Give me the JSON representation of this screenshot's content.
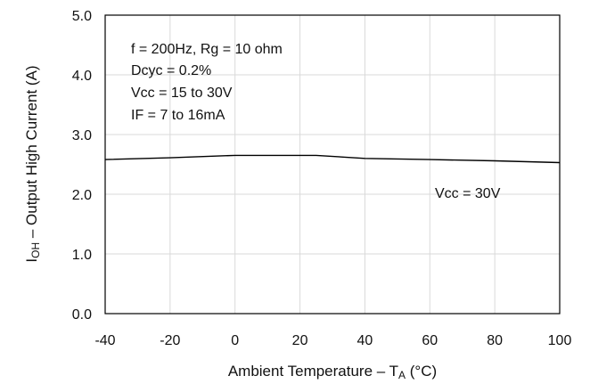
{
  "chart_data": {
    "type": "line",
    "title": "",
    "xlabel": {
      "prefix": "Ambient Temperature – T",
      "subscript": "A",
      "suffix": " (°C)"
    },
    "ylabel": {
      "prefix": "I",
      "subscript": "OH",
      "suffix": " – Output High Current (A)"
    },
    "xlim": [
      -40,
      100
    ],
    "ylim": [
      0,
      5
    ],
    "x_ticks": [
      -40,
      -20,
      0,
      20,
      40,
      60,
      80,
      100
    ],
    "x_tick_labels": [
      "-40",
      "-20",
      "0",
      "20",
      "40",
      "60",
      "80",
      "100"
    ],
    "y_ticks": [
      0,
      1,
      2,
      3,
      4,
      5
    ],
    "y_tick_labels": [
      "0.0",
      "1.0",
      "2.0",
      "3.0",
      "4.0",
      "5.0"
    ],
    "grid": true,
    "series": [
      {
        "name": "Vcc = 30V",
        "color": "#000000",
        "x": [
          -40,
          -20,
          0,
          25,
          40,
          60,
          80,
          100
        ],
        "y": [
          2.58,
          2.61,
          2.65,
          2.65,
          2.6,
          2.58,
          2.56,
          2.53
        ]
      }
    ],
    "annotations": [
      "f = 200Hz, Rg = 10 ohm",
      "Dcyc = 0.2%",
      "Vcc = 15 to 30V",
      "IF = 7 to 16mA"
    ]
  }
}
